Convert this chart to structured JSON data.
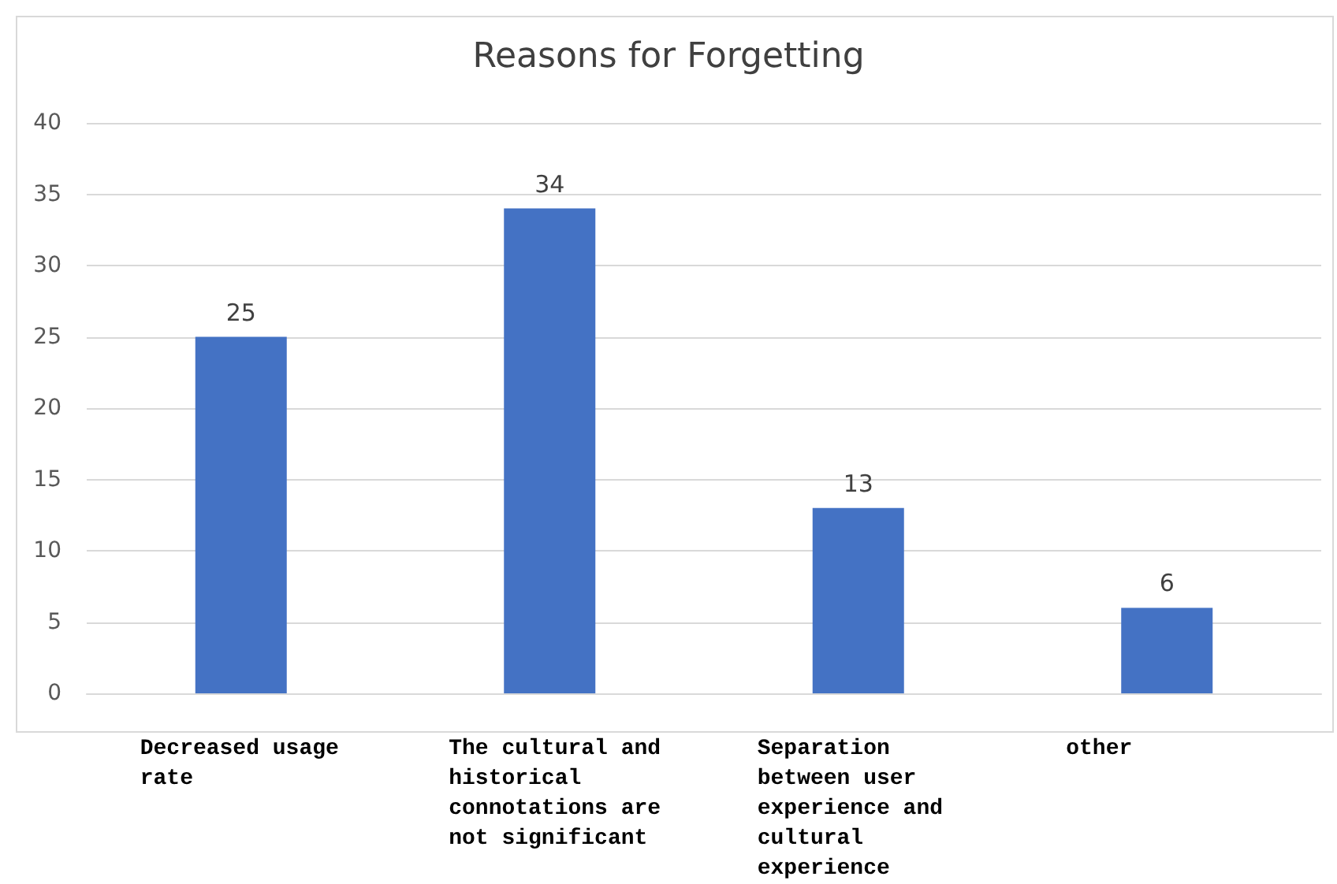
{
  "chart_data": {
    "type": "bar",
    "title": "Reasons for Forgetting",
    "categories": [
      "Decreased usage rate",
      "The cultural and historical connotations are not significant",
      "Separation between user experience and cultural experience",
      "other"
    ],
    "values": [
      25,
      34,
      13,
      6
    ],
    "color": "#4472c4",
    "data_labels": true,
    "ylim": [
      0,
      40
    ],
    "yticks": [
      0,
      5,
      10,
      15,
      20,
      25,
      30,
      35,
      40
    ],
    "grid": "y",
    "legend": false
  }
}
